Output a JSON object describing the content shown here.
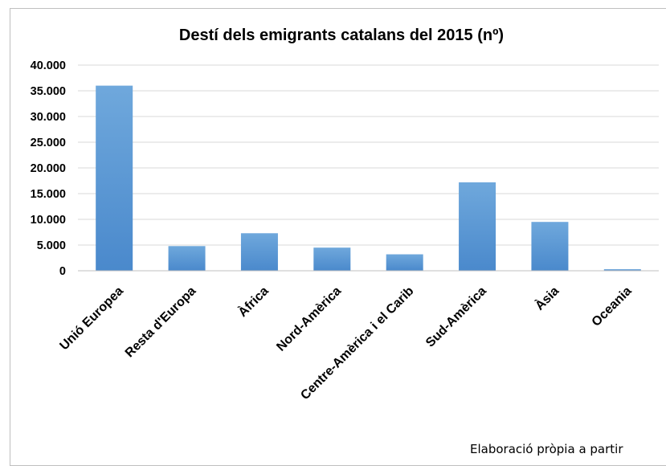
{
  "chart_data": {
    "type": "bar",
    "title": "Destí dels emigrants catalans del 2015 (nº)",
    "categories": [
      "Unió Europea",
      "Resta d'Europa",
      "Àfrica",
      "Nord-Amèrica",
      "Centre-Amèrica i el Carib",
      "Sud-Amèrica",
      "Àsia",
      "Oceania"
    ],
    "values": [
      36000,
      4800,
      7300,
      4500,
      3200,
      17200,
      9500,
      300
    ],
    "ylim": [
      0,
      40000
    ],
    "yticks": [
      0,
      5000,
      10000,
      15000,
      20000,
      25000,
      30000,
      35000,
      40000
    ],
    "ytick_labels": [
      "0",
      "5.000",
      "10.000",
      "15.000",
      "20.000",
      "25.000",
      "30.000",
      "35.000",
      "40.000"
    ],
    "grid": true,
    "bar_color": "#5b9bd5",
    "xlabel": "",
    "ylabel": ""
  },
  "source_note": "Elaboració pròpia a partir"
}
